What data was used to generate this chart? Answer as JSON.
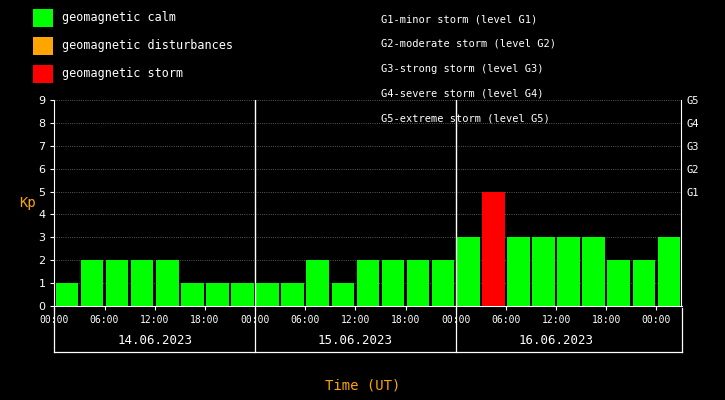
{
  "background_color": "#000000",
  "plot_bg_color": "#000000",
  "text_color": "#ffffff",
  "xlabel_color": "#ffa500",
  "ylabel_color": "#ffa500",
  "bar_values_day1": [
    1,
    2,
    2,
    2,
    2,
    1,
    1,
    1
  ],
  "bar_values_day2": [
    1,
    1,
    2,
    1,
    2,
    2,
    2,
    2
  ],
  "bar_values_day3": [
    3,
    5,
    3,
    3,
    3,
    3,
    2,
    2,
    3
  ],
  "bar_colors_day1": [
    "#00ff00",
    "#00ff00",
    "#00ff00",
    "#00ff00",
    "#00ff00",
    "#00ff00",
    "#00ff00",
    "#00ff00"
  ],
  "bar_colors_day2": [
    "#00ff00",
    "#00ff00",
    "#00ff00",
    "#00ff00",
    "#00ff00",
    "#00ff00",
    "#00ff00",
    "#00ff00"
  ],
  "bar_colors_day3": [
    "#00ff00",
    "#ff0000",
    "#00ff00",
    "#00ff00",
    "#00ff00",
    "#00ff00",
    "#00ff00",
    "#00ff00",
    "#00ff00"
  ],
  "ylim": [
    0,
    9
  ],
  "yticks": [
    0,
    1,
    2,
    3,
    4,
    5,
    6,
    7,
    8,
    9
  ],
  "day_labels": [
    "14.06.2023",
    "15.06.2023",
    "16.06.2023"
  ],
  "time_tick_labels": [
    "00:00",
    "06:00",
    "12:00",
    "18:00",
    "00:00",
    "06:00",
    "12:00",
    "18:00",
    "00:00",
    "06:00",
    "12:00",
    "18:00",
    "00:00"
  ],
  "ylabel": "Kp",
  "xlabel": "Time (UT)",
  "legend_entries": [
    {
      "label": "geomagnetic calm",
      "color": "#00ff00"
    },
    {
      "label": "geomagnetic disturbances",
      "color": "#ffa500"
    },
    {
      "label": "geomagnetic storm",
      "color": "#ff0000"
    }
  ],
  "right_labels": [
    {
      "y": 5.0,
      "text": "G1"
    },
    {
      "y": 6.0,
      "text": "G2"
    },
    {
      "y": 7.0,
      "text": "G3"
    },
    {
      "y": 8.0,
      "text": "G4"
    },
    {
      "y": 9.0,
      "text": "G5"
    }
  ],
  "g_labels_text": [
    "G1-minor storm (level G1)",
    "G2-moderate storm (level G2)",
    "G3-strong storm (level G3)",
    "G4-severe storm (level G4)",
    "G5-extreme storm (level G5)"
  ]
}
